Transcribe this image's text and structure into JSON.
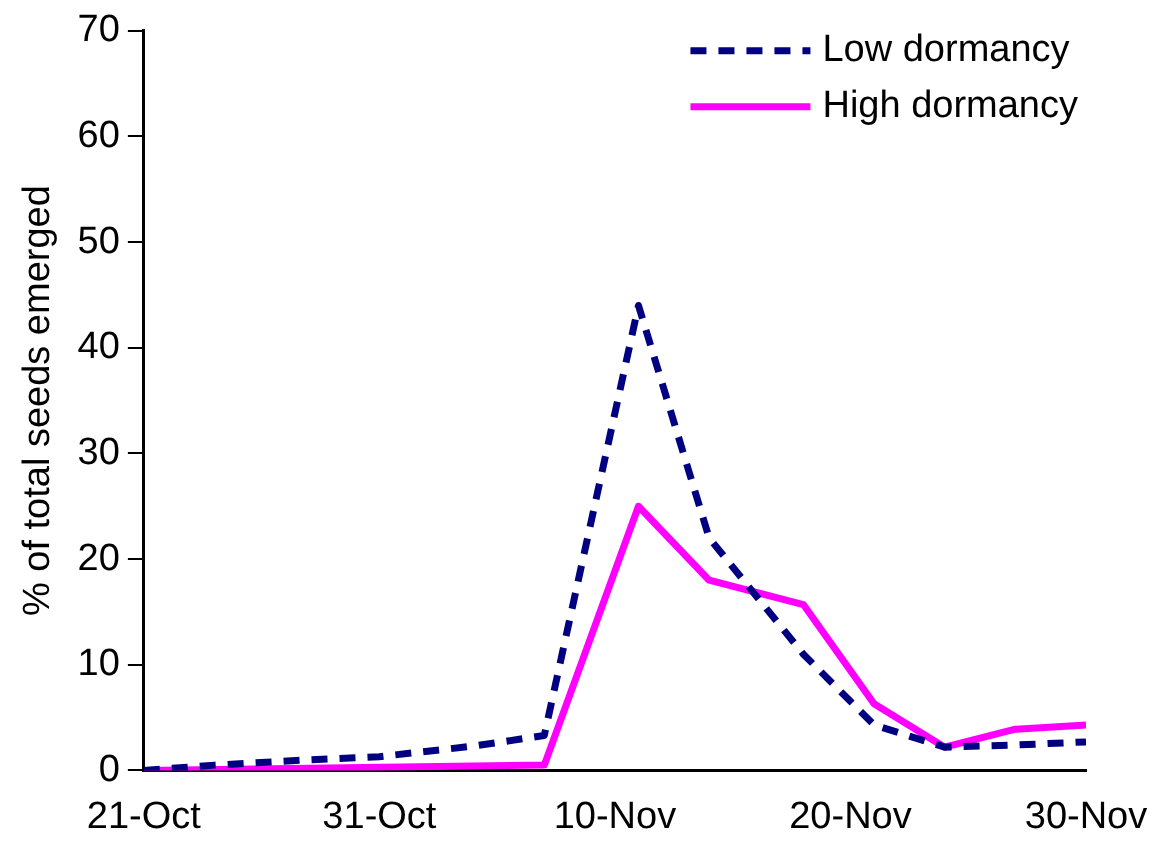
{
  "chart_data": {
    "type": "line",
    "ylabel": "% of total seeds emerged",
    "xlim": [
      "--10-21",
      "--11-30"
    ],
    "xticks": [
      {
        "value": "--10-21",
        "label": "21-Oct"
      },
      {
        "value": "--10-31",
        "label": "31-Oct"
      },
      {
        "value": "--11-10",
        "label": "10-Nov"
      },
      {
        "value": "--11-20",
        "label": "20-Nov"
      },
      {
        "value": "--11-30",
        "label": "30-Nov"
      }
    ],
    "ylim": [
      0,
      70
    ],
    "yticks": [
      0,
      10,
      20,
      30,
      40,
      50,
      60,
      70
    ],
    "grid": false,
    "legend": "top right",
    "marker": "none",
    "series": [
      {
        "name": "Low dormancy",
        "color": "#000080",
        "line_style": "dashed",
        "x": [
          "--10-21",
          "--10-24",
          "--10-28",
          "--10-31",
          "--11-04",
          "--11-07",
          "--11-11",
          "--11-14",
          "--11-18",
          "--11-21",
          "--11-24",
          "--11-27",
          "--11-30"
        ],
        "values": [
          0,
          0.5,
          1,
          1.3,
          2.3,
          3.3,
          44,
          22,
          11,
          4.3,
          2.2,
          2.4,
          2.7
        ]
      },
      {
        "name": "High dormancy",
        "color": "#ff00ff",
        "line_style": "solid",
        "x": [
          "--10-21",
          "--11-07",
          "--11-11",
          "--11-14",
          "--11-18",
          "--11-21",
          "--11-24",
          "--11-27",
          "--11-30"
        ],
        "values": [
          0,
          0.5,
          25,
          18,
          15.7,
          6.3,
          2.2,
          3.9,
          4.3
        ]
      }
    ]
  }
}
